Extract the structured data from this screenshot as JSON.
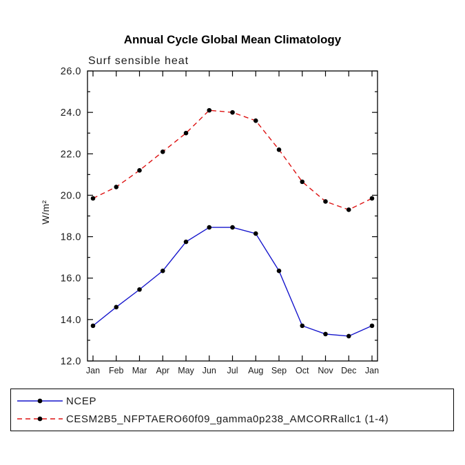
{
  "chart_data": {
    "type": "line",
    "title": "Annual Cycle Global Mean Climatology",
    "subtitle": "Surf sensible heat",
    "ylabel": "W/m²",
    "xlabel": "",
    "categories": [
      "Jan",
      "Feb",
      "Mar",
      "Apr",
      "May",
      "Jun",
      "Jul",
      "Aug",
      "Sep",
      "Oct",
      "Nov",
      "Dec",
      "Jan"
    ],
    "ylim": [
      12.0,
      26.0
    ],
    "ytick_step": 2.0,
    "minor_tick_step": 1.0,
    "ytick_labels": [
      "12.0",
      "14.0",
      "16.0",
      "18.0",
      "20.0",
      "22.0",
      "24.0",
      "26.0"
    ],
    "grid": false,
    "legend_position": "bottom",
    "marker_color": "#000000",
    "series": [
      {
        "name": "NCEP",
        "color": "#1414cc",
        "style": "solid",
        "values": [
          13.7,
          14.6,
          15.45,
          16.35,
          17.75,
          18.45,
          18.45,
          18.15,
          16.35,
          13.7,
          13.3,
          13.2,
          13.7
        ]
      },
      {
        "name": "CESM2B5_NFPTAERO60f09_gamma0p238_AMCORRallc1 (1-4)",
        "color": "#dd1111",
        "style": "dashed",
        "values": [
          19.85,
          20.4,
          21.2,
          22.1,
          23.0,
          24.1,
          24.0,
          23.6,
          22.2,
          20.65,
          19.7,
          19.3,
          19.85
        ]
      }
    ]
  }
}
